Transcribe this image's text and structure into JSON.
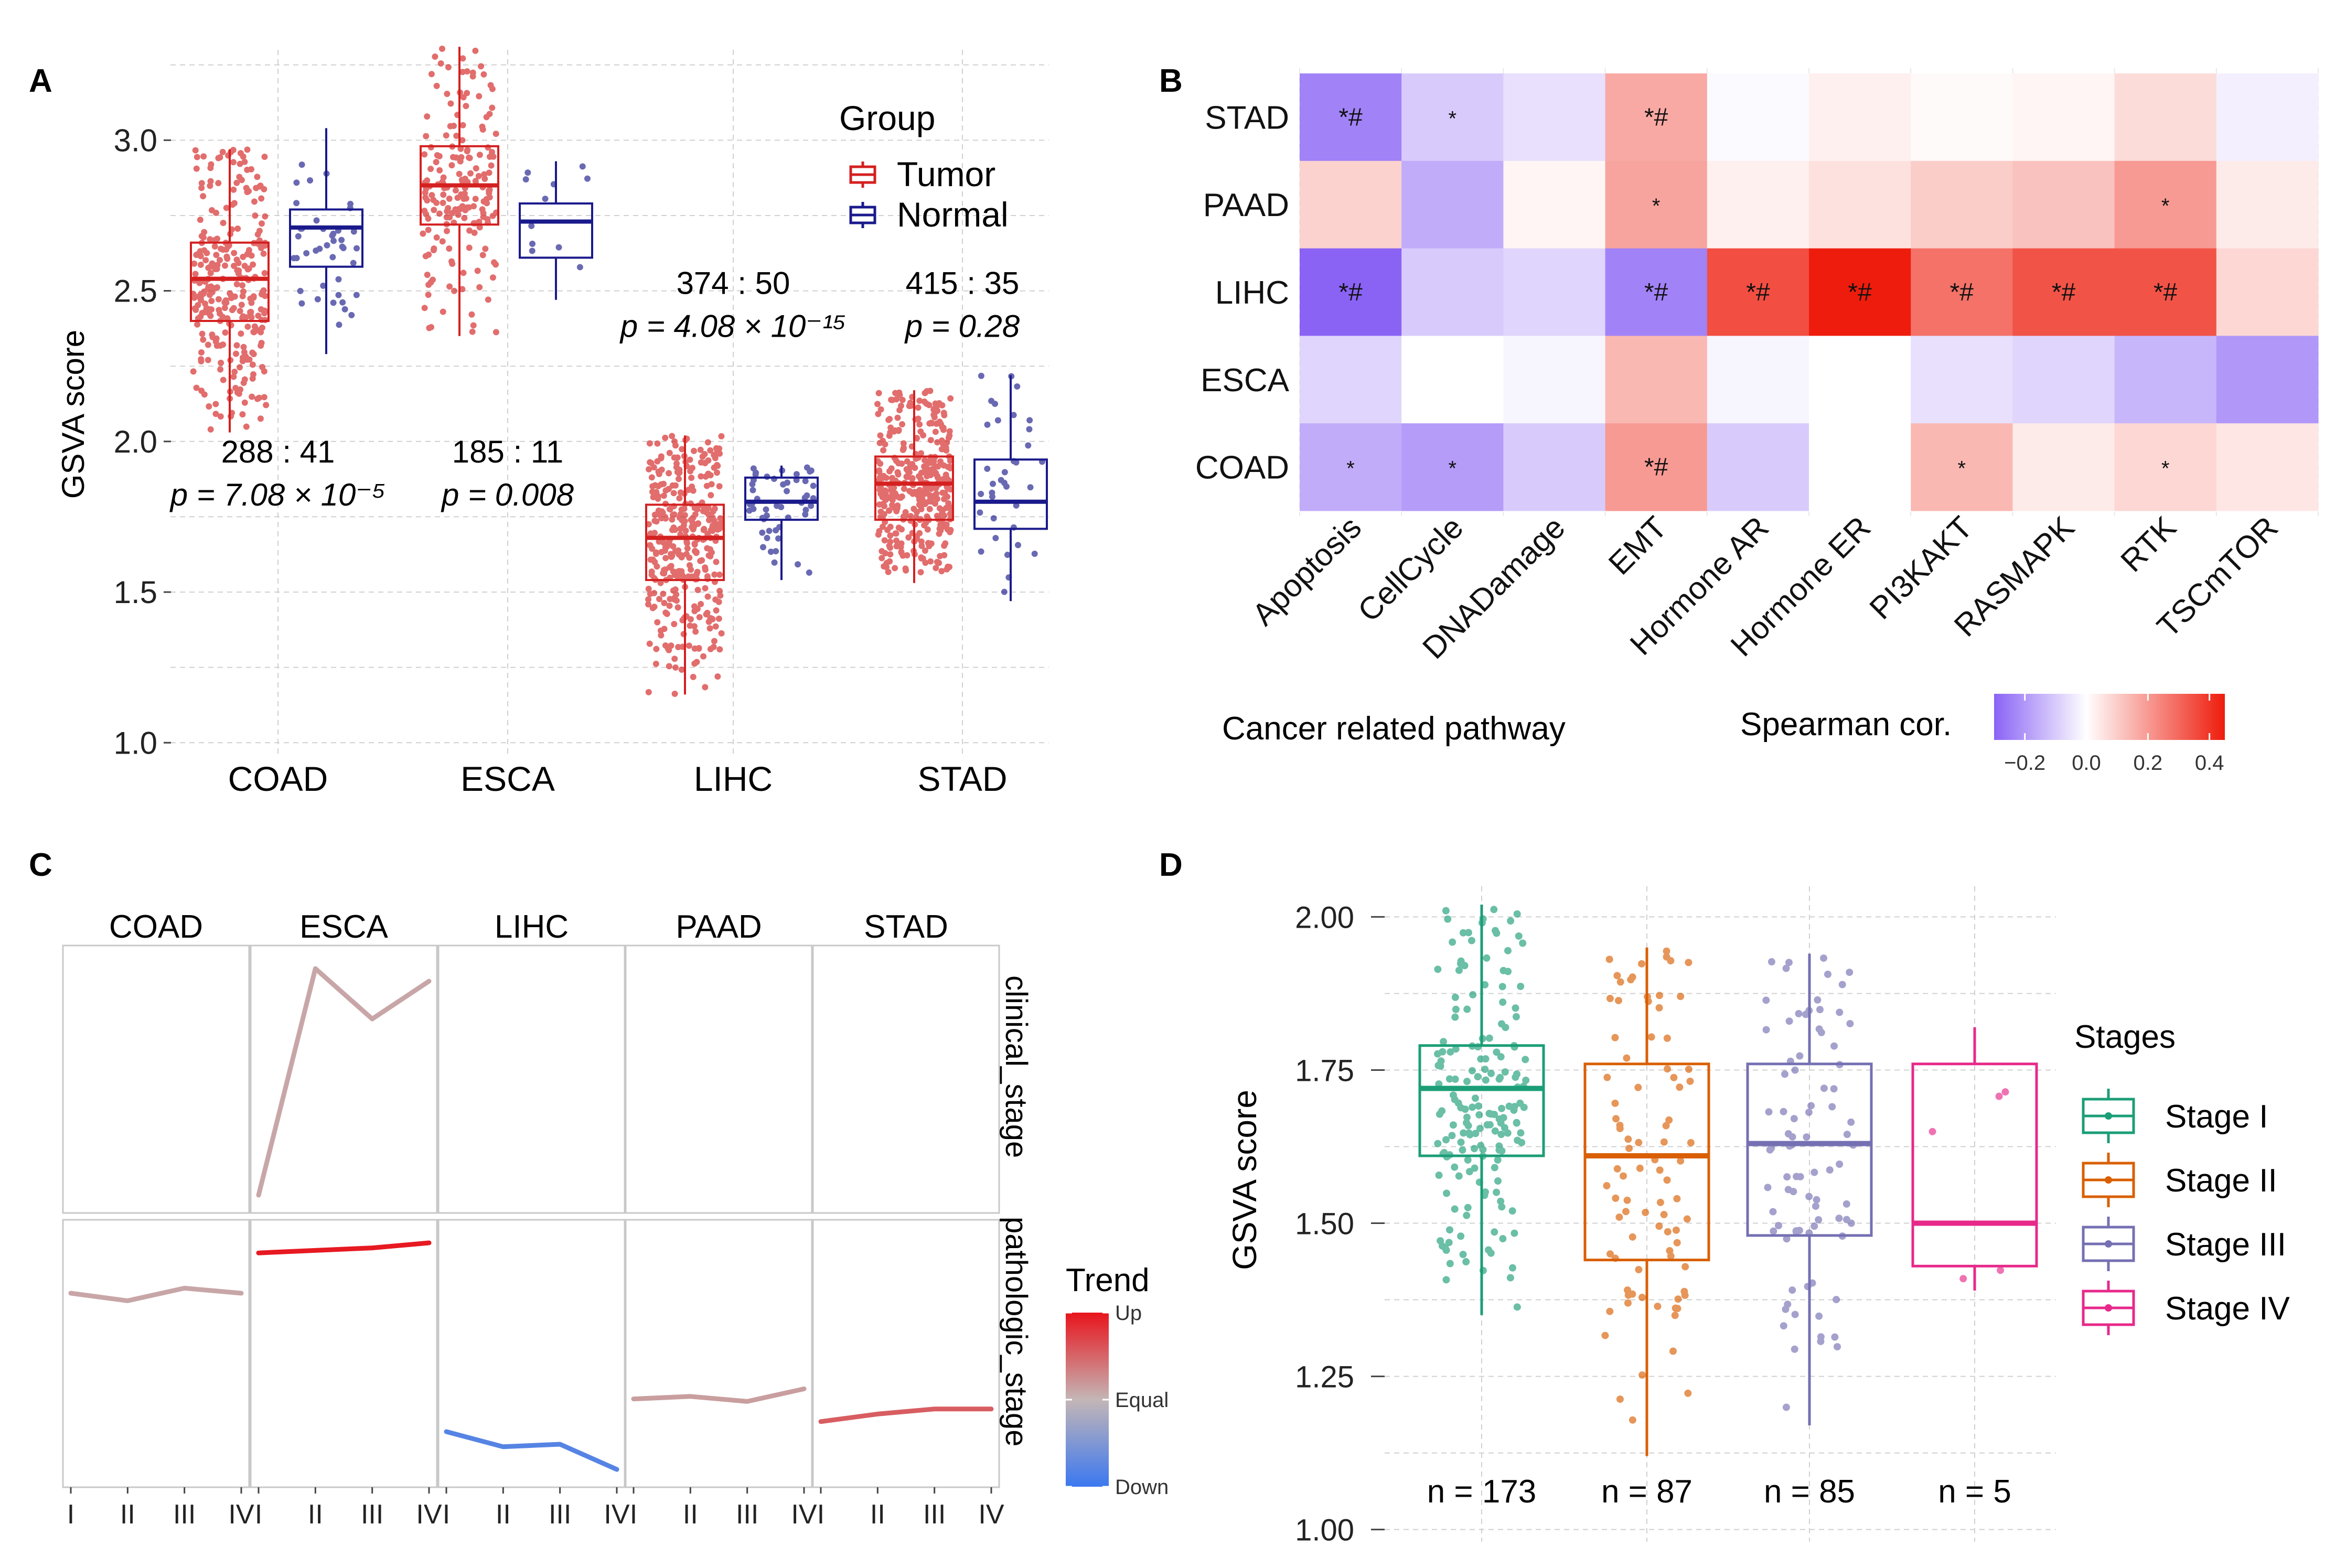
{
  "panel_labels": {
    "a": "A",
    "b": "B",
    "c": "C",
    "d": "D"
  },
  "colors": {
    "tumor": "#d42020",
    "normal": "#1a1a8c",
    "grid": "#d0d0d0",
    "heat_low": "#8a63f5",
    "heat_mid": "#ffffff",
    "heat_high": "#ee1c0c",
    "trend_up": "#e8141c",
    "trend_equal": "#c4b6b6",
    "trend_down": "#3b78f0",
    "stage1": "#1b9e77",
    "stage2": "#d95f02",
    "stage3": "#7570b3",
    "stage4": "#e7298a"
  },
  "chart_data": [
    {
      "id": "A",
      "type": "box",
      "ylabel": "GSVA score",
      "ylim": [
        0.95,
        3.3
      ],
      "yticks": [
        "1.0",
        "1.5",
        "2.0",
        "2.5",
        "3.0"
      ],
      "categories": [
        "COAD",
        "ESCA",
        "LIHC",
        "STAD"
      ],
      "legend": {
        "title": "Group",
        "items": [
          "Tumor",
          "Normal"
        ]
      },
      "boxes": [
        {
          "category": "COAD",
          "group": "Tumor",
          "n": 288,
          "q1": 2.4,
          "median": 2.54,
          "q3": 2.66,
          "whisker_low": 2.03,
          "whisker_high": 2.97
        },
        {
          "category": "COAD",
          "group": "Normal",
          "n": 41,
          "q1": 2.58,
          "median": 2.71,
          "q3": 2.77,
          "whisker_low": 2.29,
          "whisker_high": 3.04
        },
        {
          "category": "ESCA",
          "group": "Tumor",
          "n": 185,
          "q1": 2.72,
          "median": 2.85,
          "q3": 2.98,
          "whisker_low": 2.35,
          "whisker_high": 3.31
        },
        {
          "category": "ESCA",
          "group": "Normal",
          "n": 11,
          "q1": 2.61,
          "median": 2.73,
          "q3": 2.79,
          "whisker_low": 2.47,
          "whisker_high": 2.93
        },
        {
          "category": "LIHC",
          "group": "Tumor",
          "n": 374,
          "q1": 1.54,
          "median": 1.68,
          "q3": 1.79,
          "whisker_low": 1.16,
          "whisker_high": 2.02
        },
        {
          "category": "LIHC",
          "group": "Normal",
          "n": 50,
          "q1": 1.74,
          "median": 1.8,
          "q3": 1.88,
          "whisker_low": 1.54,
          "whisker_high": 1.92
        },
        {
          "category": "STAD",
          "group": "Tumor",
          "n": 415,
          "q1": 1.74,
          "median": 1.86,
          "q3": 1.95,
          "whisker_low": 1.53,
          "whisker_high": 2.17
        },
        {
          "category": "STAD",
          "group": "Normal",
          "n": 35,
          "q1": 1.71,
          "median": 1.8,
          "q3": 1.94,
          "whisker_low": 1.47,
          "whisker_high": 2.22
        }
      ],
      "annotations": [
        {
          "category": "COAD",
          "counts": "288 : 41",
          "p": "p = 7.08 × 10⁻⁵",
          "y": 1.93
        },
        {
          "category": "ESCA",
          "counts": "185 : 11",
          "p": "p = 0.008",
          "y": 1.93
        },
        {
          "category": "LIHC",
          "counts": "374 : 50",
          "p": "p = 4.08 × 10⁻¹⁵",
          "y": 2.49
        },
        {
          "category": "STAD",
          "counts": "415 : 35",
          "p": "p = 0.28",
          "y": 2.49
        }
      ]
    },
    {
      "id": "B",
      "type": "heatmap",
      "xlabel": "Cancer related pathway",
      "rows": [
        "STAD",
        "PAAD",
        "LIHC",
        "ESCA",
        "COAD"
      ],
      "columns": [
        "Apoptosis",
        "CellCycle",
        "DNADamage",
        "EMT",
        "Hormone AR",
        "Hormone ER",
        "PI3KAKT",
        "RASMAPK",
        "RTK",
        "TSCmTOR"
      ],
      "values": [
        [
          -0.24,
          -0.1,
          -0.06,
          0.17,
          -0.01,
          0.03,
          0.01,
          0.02,
          0.07,
          -0.03
        ],
        [
          0.09,
          -0.16,
          0.02,
          0.18,
          0.03,
          0.06,
          0.1,
          0.12,
          0.2,
          0.04
        ],
        [
          -0.3,
          -0.1,
          -0.08,
          -0.24,
          0.35,
          0.45,
          0.28,
          0.34,
          0.34,
          0.08
        ],
        [
          -0.08,
          0.0,
          -0.02,
          0.14,
          -0.02,
          0.0,
          -0.06,
          -0.08,
          -0.14,
          -0.2
        ],
        [
          -0.16,
          -0.19,
          -0.1,
          0.2,
          -0.1,
          0.0,
          0.14,
          0.04,
          0.08,
          0.05
        ]
      ],
      "labels": [
        [
          "*#",
          "*",
          "",
          "*#",
          "",
          "",
          "",
          "",
          "",
          ""
        ],
        [
          "",
          "",
          "",
          "*",
          "",
          "",
          "",
          "",
          "*",
          ""
        ],
        [
          "*#",
          "",
          "",
          "*#",
          "*#",
          "*#",
          "*#",
          "*#",
          "*#",
          ""
        ],
        [
          "",
          "",
          "",
          "",
          "",
          "",
          "",
          "",
          "",
          ""
        ],
        [
          "*",
          "*",
          "",
          "*#",
          "",
          "",
          "*",
          "",
          "*",
          ""
        ]
      ],
      "colorbar": {
        "title": "Spearman cor.",
        "ticks": [
          "−0.2",
          "0.0",
          "0.2",
          "0.4"
        ],
        "tick_values": [
          -0.2,
          0.0,
          0.2,
          0.4
        ],
        "range": [
          -0.3,
          0.45
        ]
      }
    },
    {
      "id": "C",
      "type": "line",
      "columns": [
        "COAD",
        "ESCA",
        "LIHC",
        "PAAD",
        "STAD"
      ],
      "rows": [
        "clinical_stage",
        "pathologic_stage"
      ],
      "x": [
        "I",
        "II",
        "III",
        "IV"
      ],
      "series": [
        {
          "cancer": "COAD",
          "row": "clinical_stage",
          "values": null,
          "trend": null
        },
        {
          "cancer": "ESCA",
          "row": "clinical_stage",
          "values": [
            0.05,
            0.95,
            0.75,
            0.9
          ],
          "trend": 0.1
        },
        {
          "cancer": "LIHC",
          "row": "clinical_stage",
          "values": null,
          "trend": null
        },
        {
          "cancer": "PAAD",
          "row": "clinical_stage",
          "values": null,
          "trend": null
        },
        {
          "cancer": "STAD",
          "row": "clinical_stage",
          "values": null,
          "trend": null
        },
        {
          "cancer": "COAD",
          "row": "pathologic_stage",
          "values": [
            0.75,
            0.72,
            0.77,
            0.75
          ],
          "trend": 0.1
        },
        {
          "cancer": "ESCA",
          "row": "pathologic_stage",
          "values": [
            0.91,
            0.92,
            0.93,
            0.95
          ],
          "trend": 0.97
        },
        {
          "cancer": "LIHC",
          "row": "pathologic_stage",
          "values": [
            0.2,
            0.14,
            0.15,
            0.05
          ],
          "trend": -0.8
        },
        {
          "cancer": "PAAD",
          "row": "pathologic_stage",
          "values": [
            0.33,
            0.34,
            0.32,
            0.37
          ],
          "trend": 0.15
        },
        {
          "cancer": "STAD",
          "row": "pathologic_stage",
          "values": [
            0.24,
            0.27,
            0.29,
            0.29
          ],
          "trend": 0.55
        }
      ],
      "legend": {
        "title": "Trend",
        "labels": [
          "Up",
          "Equal",
          "Down"
        ]
      }
    },
    {
      "id": "D",
      "type": "box",
      "ylabel": "GSVA score",
      "ylim": [
        0.98,
        2.05
      ],
      "yticks": [
        "1.00",
        "1.25",
        "1.50",
        "1.75",
        "2.00"
      ],
      "categories": [
        "Stage I",
        "Stage II",
        "Stage III",
        "Stage IV"
      ],
      "legend": {
        "title": "Stages",
        "items": [
          "Stage I",
          "Stage II",
          "Stage III",
          "Stage IV"
        ]
      },
      "boxes": [
        {
          "category": "Stage I",
          "n": 173,
          "q1": 1.61,
          "median": 1.72,
          "q3": 1.79,
          "whisker_low": 1.35,
          "whisker_high": 2.02
        },
        {
          "category": "Stage II",
          "n": 87,
          "q1": 1.44,
          "median": 1.61,
          "q3": 1.76,
          "whisker_low": 1.12,
          "whisker_high": 1.95
        },
        {
          "category": "Stage III",
          "n": 85,
          "q1": 1.48,
          "median": 1.63,
          "q3": 1.76,
          "whisker_low": 1.17,
          "whisker_high": 1.94
        },
        {
          "category": "Stage IV",
          "n": 5,
          "q1": 1.43,
          "median": 1.5,
          "q3": 1.76,
          "whisker_low": 1.39,
          "whisker_high": 1.82
        }
      ],
      "counts": [
        "n = 173",
        "n = 87",
        "n = 85",
        "n = 5"
      ]
    }
  ]
}
